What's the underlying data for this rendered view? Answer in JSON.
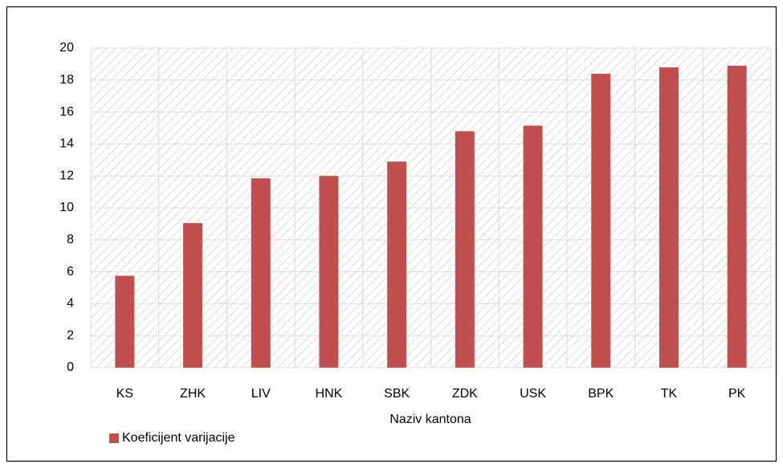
{
  "chart_data": {
    "type": "bar",
    "x_label": "Naziv kantona",
    "categories": [
      "KS",
      "ZHK",
      "LIV",
      "HNK",
      "SBK",
      "ZDK",
      "USK",
      "BPK",
      "TK",
      "PK"
    ],
    "series": [
      {
        "name": "Koeficijent varijacije",
        "color": "#c0504d",
        "values": [
          5.75,
          9.05,
          11.85,
          12.0,
          12.9,
          14.8,
          15.15,
          18.4,
          18.8,
          18.9
        ]
      }
    ],
    "ylim": [
      0,
      20
    ],
    "yticks": [
      0,
      2,
      4,
      6,
      8,
      10,
      12,
      14,
      16,
      18,
      20
    ],
    "grid": true,
    "legend": "bottom-left"
  }
}
